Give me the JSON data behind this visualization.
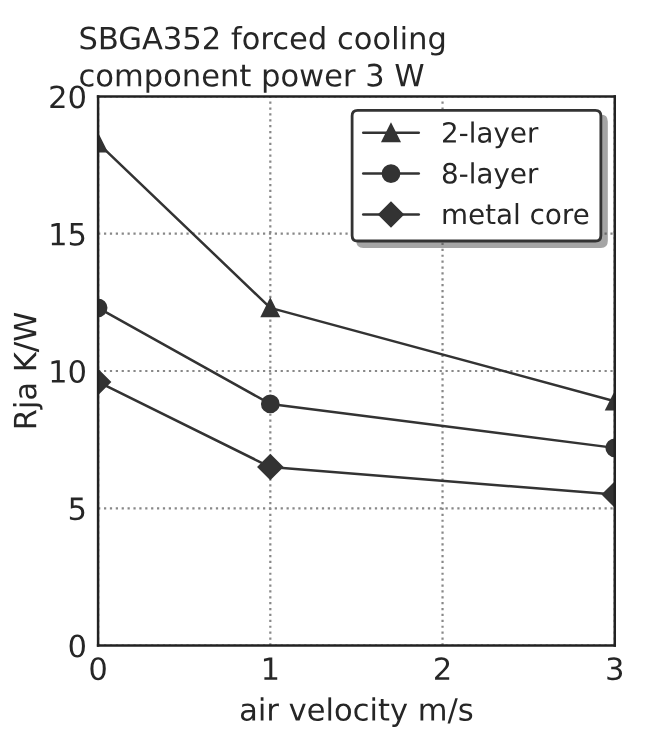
{
  "chart_data": {
    "type": "line",
    "title": "SBGA352 forced cooling",
    "subtitle": "component power 3 W",
    "xlabel": "air velocity m/s",
    "ylabel": "Rja K/W",
    "x": [
      0,
      1,
      3
    ],
    "xlim": [
      0,
      3
    ],
    "xticks": [
      0,
      1,
      2,
      3
    ],
    "ylim": [
      0,
      20
    ],
    "yticks": [
      0,
      5,
      10,
      15,
      20
    ],
    "series": [
      {
        "name": "2-layer",
        "color": "#333333",
        "marker": "triangle",
        "values": [
          18.3,
          12.3,
          8.9
        ]
      },
      {
        "name": "8-layer",
        "color": "#333333",
        "marker": "circle",
        "values": [
          12.3,
          8.8,
          7.2
        ]
      },
      {
        "name": "metal core",
        "color": "#333333",
        "marker": "diamond",
        "values": [
          9.6,
          6.5,
          5.5
        ]
      }
    ],
    "grid": true,
    "legend": "top right",
    "line_style": "solid"
  }
}
